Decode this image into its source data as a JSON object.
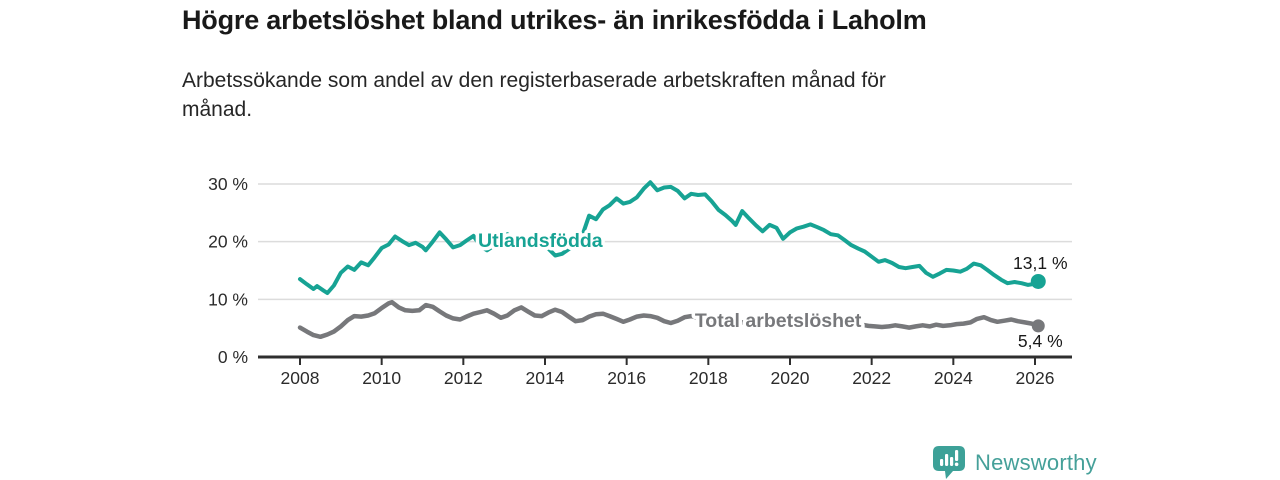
{
  "header": {
    "title": "Högre arbetslöshet bland utrikes- än inrikesfödda i Laholm",
    "subtitle_lines": [
      "Arbetssökande som andel av den registerbaserade arbetskraften månad för",
      "månad."
    ]
  },
  "footer": {
    "brand": "Newsworthy",
    "logo_icon": "bar-chart-speech-bubble-icon"
  },
  "colors": {
    "accent_teal": "#17a394",
    "series_gray": "#77787b",
    "grid": "#dcdcdc",
    "axis": "#2f2f2f",
    "tick_text": "#2b2b2b",
    "end_label_text": "#191919",
    "logo_teal": "#45a099"
  },
  "chart_data": {
    "type": "line",
    "title": "Högre arbetslöshet bland utrikes- än inrikesfödda i Laholm",
    "subtitle": "Arbetssökande som andel av den registerbaserade arbetskraften månad för månad.",
    "xlabel": "",
    "ylabel": "",
    "x_axis": {
      "ticks": [
        2008,
        2010,
        2012,
        2014,
        2016,
        2018,
        2020,
        2022,
        2024,
        2026
      ],
      "range": [
        2007.3,
        2026.9
      ]
    },
    "y_axis": {
      "ticks": [
        0,
        10,
        20,
        30
      ],
      "tick_suffix": " %",
      "range": [
        0,
        31
      ]
    },
    "grid": "horizontal",
    "legend_position": "inline-labels",
    "series": [
      {
        "name": "Utlandsfödda",
        "color": "#17a394",
        "end_value": 13.1,
        "end_label": "13,1 %",
        "points": [
          [
            2008.0,
            13.5
          ],
          [
            2008.17,
            12.6
          ],
          [
            2008.33,
            11.8
          ],
          [
            2008.42,
            12.3
          ],
          [
            2008.58,
            11.5
          ],
          [
            2008.67,
            11.1
          ],
          [
            2008.83,
            12.4
          ],
          [
            2009.0,
            14.6
          ],
          [
            2009.17,
            15.7
          ],
          [
            2009.33,
            15.1
          ],
          [
            2009.5,
            16.4
          ],
          [
            2009.67,
            15.9
          ],
          [
            2009.83,
            17.3
          ],
          [
            2010.0,
            18.9
          ],
          [
            2010.17,
            19.5
          ],
          [
            2010.33,
            20.9
          ],
          [
            2010.5,
            20.1
          ],
          [
            2010.67,
            19.4
          ],
          [
            2010.83,
            19.8
          ],
          [
            2011.0,
            19.1
          ],
          [
            2011.08,
            18.5
          ],
          [
            2011.25,
            20.0
          ],
          [
            2011.42,
            21.6
          ],
          [
            2011.58,
            20.4
          ],
          [
            2011.75,
            19.0
          ],
          [
            2011.92,
            19.4
          ],
          [
            2012.08,
            20.2
          ],
          [
            2012.25,
            21.0
          ],
          [
            2012.42,
            19.2
          ],
          [
            2012.58,
            18.5
          ],
          [
            2012.75,
            19.3
          ],
          [
            2012.92,
            20.4
          ],
          [
            2013.08,
            21.3
          ],
          [
            2013.25,
            20.5
          ],
          [
            2013.42,
            19.7
          ],
          [
            2013.58,
            19.1
          ],
          [
            2013.75,
            19.2
          ],
          [
            2013.92,
            19.4
          ],
          [
            2014.08,
            18.8
          ],
          [
            2014.25,
            17.6
          ],
          [
            2014.42,
            17.9
          ],
          [
            2014.58,
            18.7
          ],
          [
            2014.75,
            19.4
          ],
          [
            2014.92,
            21.2
          ],
          [
            2015.08,
            24.5
          ],
          [
            2015.25,
            23.9
          ],
          [
            2015.42,
            25.6
          ],
          [
            2015.58,
            26.3
          ],
          [
            2015.75,
            27.5
          ],
          [
            2015.92,
            26.6
          ],
          [
            2016.08,
            26.9
          ],
          [
            2016.25,
            27.7
          ],
          [
            2016.42,
            29.2
          ],
          [
            2016.58,
            30.3
          ],
          [
            2016.75,
            28.9
          ],
          [
            2016.92,
            29.4
          ],
          [
            2017.08,
            29.5
          ],
          [
            2017.25,
            28.8
          ],
          [
            2017.42,
            27.5
          ],
          [
            2017.58,
            28.3
          ],
          [
            2017.75,
            28.1
          ],
          [
            2017.92,
            28.2
          ],
          [
            2018.08,
            27.0
          ],
          [
            2018.25,
            25.5
          ],
          [
            2018.42,
            24.6
          ],
          [
            2018.58,
            23.6
          ],
          [
            2018.67,
            22.9
          ],
          [
            2018.83,
            25.3
          ],
          [
            2019.0,
            24.0
          ],
          [
            2019.17,
            22.8
          ],
          [
            2019.33,
            21.8
          ],
          [
            2019.5,
            22.9
          ],
          [
            2019.67,
            22.4
          ],
          [
            2019.83,
            20.5
          ],
          [
            2020.0,
            21.6
          ],
          [
            2020.17,
            22.3
          ],
          [
            2020.33,
            22.6
          ],
          [
            2020.5,
            23.0
          ],
          [
            2020.67,
            22.5
          ],
          [
            2020.83,
            22.0
          ],
          [
            2021.0,
            21.3
          ],
          [
            2021.17,
            21.1
          ],
          [
            2021.33,
            20.3
          ],
          [
            2021.5,
            19.4
          ],
          [
            2021.67,
            18.8
          ],
          [
            2021.83,
            18.3
          ],
          [
            2022.0,
            17.4
          ],
          [
            2022.17,
            16.5
          ],
          [
            2022.33,
            16.8
          ],
          [
            2022.5,
            16.3
          ],
          [
            2022.67,
            15.6
          ],
          [
            2022.83,
            15.4
          ],
          [
            2023.0,
            15.6
          ],
          [
            2023.17,
            15.8
          ],
          [
            2023.33,
            14.6
          ],
          [
            2023.5,
            13.9
          ],
          [
            2023.67,
            14.5
          ],
          [
            2023.83,
            15.1
          ],
          [
            2024.0,
            15.0
          ],
          [
            2024.17,
            14.8
          ],
          [
            2024.33,
            15.3
          ],
          [
            2024.5,
            16.2
          ],
          [
            2024.67,
            15.9
          ],
          [
            2024.83,
            15.1
          ],
          [
            2025.0,
            14.2
          ],
          [
            2025.17,
            13.4
          ],
          [
            2025.33,
            12.8
          ],
          [
            2025.5,
            13.0
          ],
          [
            2025.67,
            12.8
          ],
          [
            2025.83,
            12.5
          ],
          [
            2026.0,
            12.7
          ],
          [
            2026.08,
            13.1
          ]
        ]
      },
      {
        "name": "Total arbetslöshet",
        "color": "#77787b",
        "end_value": 5.4,
        "end_label": "5,4 %",
        "points": [
          [
            2008.0,
            5.1
          ],
          [
            2008.17,
            4.4
          ],
          [
            2008.33,
            3.8
          ],
          [
            2008.5,
            3.5
          ],
          [
            2008.67,
            3.9
          ],
          [
            2008.83,
            4.4
          ],
          [
            2009.0,
            5.3
          ],
          [
            2009.17,
            6.4
          ],
          [
            2009.33,
            7.1
          ],
          [
            2009.5,
            7.0
          ],
          [
            2009.67,
            7.2
          ],
          [
            2009.83,
            7.6
          ],
          [
            2010.0,
            8.5
          ],
          [
            2010.17,
            9.3
          ],
          [
            2010.25,
            9.5
          ],
          [
            2010.42,
            8.6
          ],
          [
            2010.58,
            8.1
          ],
          [
            2010.75,
            8.0
          ],
          [
            2010.92,
            8.1
          ],
          [
            2011.08,
            9.0
          ],
          [
            2011.25,
            8.7
          ],
          [
            2011.42,
            7.9
          ],
          [
            2011.58,
            7.2
          ],
          [
            2011.75,
            6.7
          ],
          [
            2011.92,
            6.5
          ],
          [
            2012.08,
            7.0
          ],
          [
            2012.25,
            7.5
          ],
          [
            2012.42,
            7.8
          ],
          [
            2012.58,
            8.1
          ],
          [
            2012.75,
            7.5
          ],
          [
            2012.92,
            6.8
          ],
          [
            2013.08,
            7.2
          ],
          [
            2013.25,
            8.1
          ],
          [
            2013.42,
            8.6
          ],
          [
            2013.58,
            7.9
          ],
          [
            2013.75,
            7.2
          ],
          [
            2013.92,
            7.1
          ],
          [
            2014.08,
            7.7
          ],
          [
            2014.25,
            8.2
          ],
          [
            2014.42,
            7.8
          ],
          [
            2014.58,
            7.0
          ],
          [
            2014.75,
            6.2
          ],
          [
            2014.92,
            6.4
          ],
          [
            2015.08,
            7.0
          ],
          [
            2015.25,
            7.4
          ],
          [
            2015.42,
            7.5
          ],
          [
            2015.58,
            7.1
          ],
          [
            2015.75,
            6.6
          ],
          [
            2015.92,
            6.1
          ],
          [
            2016.08,
            6.5
          ],
          [
            2016.25,
            7.0
          ],
          [
            2016.42,
            7.2
          ],
          [
            2016.58,
            7.1
          ],
          [
            2016.75,
            6.8
          ],
          [
            2016.92,
            6.2
          ],
          [
            2017.08,
            5.9
          ],
          [
            2017.25,
            6.3
          ],
          [
            2017.42,
            6.9
          ],
          [
            2017.58,
            7.1
          ],
          [
            2017.75,
            6.8
          ],
          [
            2017.92,
            6.4
          ],
          [
            2018.08,
            6.2
          ],
          [
            2018.25,
            6.5
          ],
          [
            2018.42,
            6.7
          ],
          [
            2018.58,
            6.4
          ],
          [
            2018.75,
            6.1
          ],
          [
            2018.92,
            5.9
          ],
          [
            2019.08,
            6.0
          ],
          [
            2019.25,
            6.3
          ],
          [
            2019.42,
            6.5
          ],
          [
            2019.58,
            6.2
          ],
          [
            2019.75,
            6.0
          ],
          [
            2019.92,
            6.1
          ],
          [
            2020.08,
            6.4
          ],
          [
            2020.25,
            7.0
          ],
          [
            2020.42,
            7.4
          ],
          [
            2020.58,
            7.2
          ],
          [
            2020.75,
            6.9
          ],
          [
            2020.92,
            6.6
          ],
          [
            2021.08,
            6.5
          ],
          [
            2021.25,
            6.3
          ],
          [
            2021.42,
            6.0
          ],
          [
            2021.58,
            5.8
          ],
          [
            2021.75,
            5.6
          ],
          [
            2021.92,
            5.4
          ],
          [
            2022.08,
            5.3
          ],
          [
            2022.25,
            5.2
          ],
          [
            2022.42,
            5.3
          ],
          [
            2022.58,
            5.5
          ],
          [
            2022.75,
            5.3
          ],
          [
            2022.92,
            5.1
          ],
          [
            2023.08,
            5.3
          ],
          [
            2023.25,
            5.5
          ],
          [
            2023.42,
            5.3
          ],
          [
            2023.58,
            5.6
          ],
          [
            2023.75,
            5.4
          ],
          [
            2023.92,
            5.5
          ],
          [
            2024.08,
            5.7
          ],
          [
            2024.25,
            5.8
          ],
          [
            2024.42,
            6.0
          ],
          [
            2024.58,
            6.6
          ],
          [
            2024.75,
            6.9
          ],
          [
            2024.92,
            6.4
          ],
          [
            2025.08,
            6.1
          ],
          [
            2025.25,
            6.3
          ],
          [
            2025.42,
            6.5
          ],
          [
            2025.58,
            6.2
          ],
          [
            2025.75,
            6.0
          ],
          [
            2025.92,
            5.8
          ],
          [
            2026.08,
            5.4
          ]
        ]
      }
    ],
    "annotations": [
      {
        "text": "Utlandsfödda",
        "series": "Utlandsfödda",
        "x": 2012.36,
        "y": 19.1,
        "color": "#17a394"
      },
      {
        "text": "Total arbetslöshet",
        "series": "Total arbetslöshet",
        "x": 2017.67,
        "y": 5.2,
        "color": "#77787b"
      }
    ]
  }
}
